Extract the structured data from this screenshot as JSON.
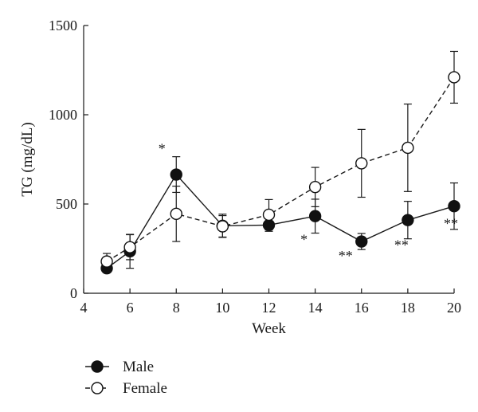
{
  "chart_data": {
    "type": "line",
    "xlabel": "Week",
    "ylabel": "TG (mg/dL)",
    "xlim": [
      4,
      20
    ],
    "ylim": [
      0,
      1500
    ],
    "xticks": [
      4,
      6,
      8,
      10,
      12,
      14,
      16,
      18,
      20
    ],
    "yticks": [
      0,
      500,
      1000,
      1500
    ],
    "x": [
      5,
      6,
      8,
      10,
      12,
      14,
      16,
      18,
      20
    ],
    "series": [
      {
        "name": "Male",
        "marker": "filled-circle",
        "line_style": "solid",
        "values": [
          140,
          235,
          665,
          378,
          382,
          432,
          290,
          410,
          488
        ],
        "error": [
          20,
          95,
          100,
          65,
          35,
          95,
          45,
          105,
          130
        ],
        "annotations": [
          "",
          "",
          "*",
          "",
          "",
          "*",
          "**",
          "**",
          "**"
        ]
      },
      {
        "name": "Female",
        "marker": "open-circle",
        "line_style": "dashed",
        "values": [
          178,
          258,
          445,
          375,
          440,
          595,
          728,
          815,
          1210
        ],
        "error": [
          45,
          70,
          155,
          60,
          85,
          110,
          190,
          245,
          145
        ]
      }
    ],
    "legend": "bottom-left"
  }
}
